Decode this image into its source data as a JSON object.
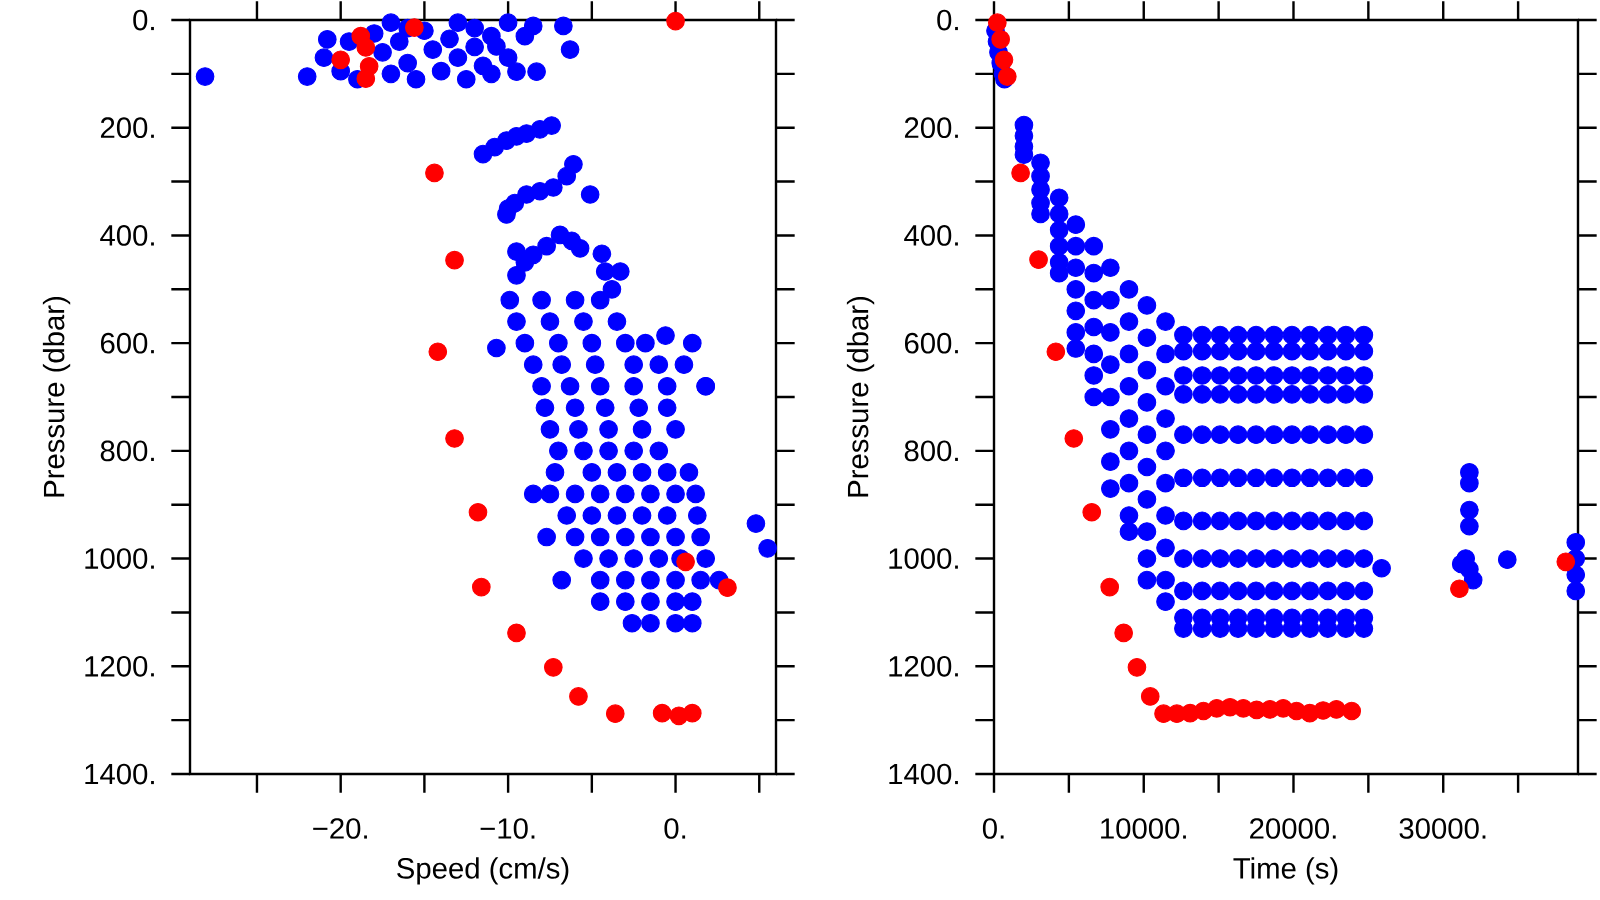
{
  "chart_data": [
    {
      "type": "scatter",
      "xlabel": "Speed (cm/s)",
      "ylabel": "Pressure (dbar)",
      "marker": "circle",
      "xlim": [
        -29,
        6
      ],
      "ylim": [
        1400,
        0
      ],
      "xticks": [
        {
          "value": -25,
          "label": null
        },
        {
          "value": -20,
          "label": "−20."
        },
        {
          "value": -15,
          "label": null
        },
        {
          "value": -10,
          "label": "−10."
        },
        {
          "value": -5,
          "label": null
        },
        {
          "value": 0,
          "label": "0."
        },
        {
          "value": 5,
          "label": null
        }
      ],
      "yticks": [
        {
          "value": 0,
          "label": "0."
        },
        {
          "value": 100,
          "label": null
        },
        {
          "value": 200,
          "label": "200."
        },
        {
          "value": 300,
          "label": null
        },
        {
          "value": 400,
          "label": "400."
        },
        {
          "value": 500,
          "label": null
        },
        {
          "value": 600,
          "label": "600."
        },
        {
          "value": 700,
          "label": null
        },
        {
          "value": 800,
          "label": "800."
        },
        {
          "value": 900,
          "label": null
        },
        {
          "value": 1000,
          "label": "1000."
        },
        {
          "value": 1100,
          "label": null
        },
        {
          "value": 1200,
          "label": "1200."
        },
        {
          "value": 1300,
          "label": null
        },
        {
          "value": 1400,
          "label": "1400."
        }
      ],
      "series": [
        {
          "color": "#0000ff",
          "x": [
            -28.1,
            -22,
            -20.8,
            -21,
            -20,
            -19.5,
            -19,
            -18,
            -17.5,
            -17,
            -16.5,
            -16,
            -15.5,
            -15,
            -14.5,
            -14,
            -13.5,
            -13,
            -12.5,
            -12,
            -12,
            -11.5,
            -11,
            -11,
            -10.7,
            -10,
            -9.5,
            -9,
            -8.5,
            -8.3,
            -6.7,
            -6.3,
            -17,
            -13,
            -10,
            -16,
            -11.5,
            -10.8,
            -10.1,
            -9.5,
            -8.9,
            -8.1,
            -7.4,
            -10.1,
            -9.6,
            -8.9,
            -8.1,
            -7.3,
            -6.5,
            -6.1,
            -5.1,
            -10,
            -9.5,
            -9,
            -8.5,
            -7.7,
            -6.9,
            -6.2,
            -5.7,
            -4.4,
            -4.2,
            -3.3,
            -3.8,
            -9.5,
            -9.9,
            -8,
            -6,
            -4.5,
            -9.5,
            -7.5,
            -5.5,
            -3.5,
            -9,
            -7,
            -5,
            -3,
            -1.8,
            1.0,
            -8.5,
            -6.8,
            -4.8,
            -2.5,
            -1,
            0.5,
            -8,
            -6.3,
            -4.5,
            -2.5,
            -0.5,
            1.8,
            -7.8,
            -6,
            -4.2,
            -2.2,
            -0.5,
            -7.5,
            -5.8,
            -4,
            -2,
            0,
            -7,
            -5.5,
            -4,
            -2.5,
            -1,
            -7.2,
            -5,
            -3.5,
            -2,
            -0.5,
            0.8,
            -8.5,
            -7.5,
            -6,
            -4.5,
            -3,
            -1.5,
            0,
            1.2,
            -6.5,
            -5,
            -3.5,
            -2,
            -0.5,
            1.3,
            -7.7,
            -6,
            -4.5,
            -3,
            -1.5,
            0,
            1.5,
            -5.5,
            -4,
            -2.5,
            -1,
            0.3,
            1.8,
            -6.8,
            -4.5,
            -3,
            -1.5,
            0,
            1.5,
            2.6,
            -4.5,
            -3,
            -1.5,
            0,
            1,
            -2.6,
            -1.5,
            0,
            1,
            -10.7,
            1.8,
            -0.6,
            4.8,
            5.5
          ],
          "values": [
            105,
            105,
            36,
            70,
            95,
            40,
            110,
            25,
            60,
            100,
            40,
            80,
            110,
            20,
            55,
            95,
            35,
            70,
            110,
            15,
            50,
            85,
            30,
            100,
            49,
            70,
            96,
            30,
            11,
            96,
            11,
            55,
            5,
            5,
            5,
            15,
            249,
            236,
            224,
            216,
            211,
            203,
            196,
            361,
            340,
            324,
            318,
            311,
            290,
            268,
            324,
            350,
            474,
            450,
            436,
            420,
            399,
            410,
            424,
            434,
            467,
            467,
            500,
            430,
            520,
            520,
            520,
            520,
            560,
            560,
            560,
            560,
            600,
            600,
            600,
            600,
            600,
            600,
            640,
            640,
            640,
            640,
            640,
            640,
            680,
            680,
            680,
            680,
            680,
            680,
            720,
            720,
            720,
            720,
            720,
            760,
            760,
            760,
            760,
            760,
            800,
            800,
            800,
            800,
            800,
            840,
            840,
            840,
            840,
            840,
            840,
            880,
            880,
            880,
            880,
            880,
            880,
            880,
            880,
            920,
            920,
            920,
            920,
            920,
            920,
            960,
            960,
            960,
            960,
            960,
            960,
            960,
            1000,
            1000,
            1000,
            1000,
            1000,
            1000,
            1040,
            1040,
            1040,
            1040,
            1040,
            1040,
            1040,
            1080,
            1080,
            1080,
            1080,
            1080,
            1120,
            1120,
            1120,
            1120,
            609,
            680,
            586,
            935,
            981
          ]
        },
        {
          "color": "#ff0000",
          "x": [
            -15.6,
            0,
            -20,
            -18.8,
            -18.5,
            -18.3,
            -18.5,
            -14.4,
            -13.2,
            -14.2,
            -13.2,
            -11.8,
            -11.6,
            -9.5,
            -7.3,
            -5.8,
            -3.6,
            0.6,
            3.1,
            -0.8,
            1.0,
            0.2
          ],
          "values": [
            14,
            2,
            74,
            30,
            51,
            86,
            109,
            284,
            446,
            616,
            777,
            914,
            1053,
            1138,
            1202,
            1256,
            1288,
            1006,
            1054,
            1287,
            1287,
            1292
          ]
        }
      ]
    },
    {
      "type": "scatter",
      "xlabel": "Time (s)",
      "ylabel": "Pressure (dbar)",
      "marker": "circle",
      "xlim": [
        0,
        39000
      ],
      "ylim": [
        1400,
        0
      ],
      "xticks": [
        {
          "value": 0,
          "label": "0."
        },
        {
          "value": 5000,
          "label": null
        },
        {
          "value": 10000,
          "label": "10000."
        },
        {
          "value": 15000,
          "label": null
        },
        {
          "value": 20000,
          "label": "20000."
        },
        {
          "value": 25000,
          "label": null
        },
        {
          "value": 30000,
          "label": "30000."
        },
        {
          "value": 35000,
          "label": null
        }
      ],
      "yticks": [
        {
          "value": 0,
          "label": "0."
        },
        {
          "value": 100,
          "label": null
        },
        {
          "value": 200,
          "label": "200."
        },
        {
          "value": 300,
          "label": null
        },
        {
          "value": 400,
          "label": "400."
        },
        {
          "value": 500,
          "label": null
        },
        {
          "value": 600,
          "label": "600."
        },
        {
          "value": 700,
          "label": null
        },
        {
          "value": 800,
          "label": "800."
        },
        {
          "value": 900,
          "label": null
        },
        {
          "value": 1000,
          "label": "1000."
        },
        {
          "value": 1100,
          "label": null
        },
        {
          "value": 1200,
          "label": "1200."
        },
        {
          "value": 1300,
          "label": null
        },
        {
          "value": 1400,
          "label": "1400."
        }
      ],
      "series": [
        {
          "color": "#0000ff",
          "x": [
            100,
            200,
            300,
            450,
            600,
            700,
            1998,
            1998,
            1998,
            1998,
            3108,
            3108,
            3108,
            3108,
            3108,
            4351,
            4351,
            4351,
            4351,
            4351,
            4351,
            5461,
            5461,
            5461,
            5461,
            5461,
            5461,
            5461,
            6660,
            6660,
            6660,
            6660,
            6660,
            6660,
            6660,
            7770,
            7770,
            7770,
            7770,
            7770,
            7770,
            7770,
            7770,
            9013,
            9013,
            9013,
            9013,
            9013,
            9013,
            9013,
            9013,
            9013,
            10212,
            10212,
            10212,
            10212,
            10212,
            10212,
            10212,
            10212,
            10212,
            10212,
            11455,
            11455,
            11455,
            11455,
            11455,
            11455,
            11455,
            11455,
            11455,
            11455,
            12650,
            12650,
            12650,
            12650,
            12650,
            12650,
            12650,
            12650,
            12650,
            12650,
            12650,
            13900,
            13900,
            13900,
            13900,
            13900,
            13900,
            13900,
            13900,
            13900,
            13900,
            13900,
            15100,
            15100,
            15100,
            15100,
            15100,
            15100,
            15100,
            15100,
            15100,
            15100,
            15100,
            16300,
            16300,
            16300,
            16300,
            16300,
            16300,
            16300,
            16300,
            16300,
            16300,
            16300,
            17500,
            17500,
            17500,
            17500,
            17500,
            17500,
            17500,
            17500,
            17500,
            17500,
            17500,
            18700,
            18700,
            18700,
            18700,
            18700,
            18700,
            18700,
            18700,
            18700,
            18700,
            18700,
            19900,
            19900,
            19900,
            19900,
            19900,
            19900,
            19900,
            19900,
            19900,
            19900,
            19900,
            21100,
            21100,
            21100,
            21100,
            21100,
            21100,
            21100,
            21100,
            21100,
            21100,
            21100,
            22300,
            22300,
            22300,
            22300,
            22300,
            22300,
            22300,
            22300,
            22300,
            22300,
            22300,
            23500,
            23500,
            23500,
            23500,
            23500,
            23500,
            23500,
            23500,
            23500,
            23500,
            23500,
            24700,
            24700,
            24700,
            24700,
            24700,
            24700,
            24700,
            24700,
            24700,
            24700,
            24700,
            25885,
            31746,
            31746,
            31746,
            31746,
            31500,
            31746,
            32000,
            31200,
            34277,
            38850,
            38850,
            38850,
            38850
          ],
          "values": [
            20,
            40,
            60,
            80,
            100,
            110,
            195,
            215,
            235,
            250,
            265,
            290,
            315,
            340,
            360,
            330,
            360,
            390,
            420,
            450,
            470,
            380,
            420,
            460,
            500,
            540,
            580,
            610,
            420,
            470,
            520,
            570,
            620,
            660,
            700,
            460,
            520,
            580,
            640,
            700,
            760,
            820,
            870,
            500,
            560,
            620,
            680,
            740,
            800,
            860,
            920,
            950,
            530,
            590,
            650,
            710,
            770,
            830,
            890,
            950,
            1000,
            1040,
            560,
            620,
            680,
            740,
            800,
            860,
            920,
            980,
            1040,
            1080,
            585,
            615,
            660,
            695,
            770,
            850,
            930,
            1000,
            1060,
            1110,
            1130,
            585,
            615,
            660,
            695,
            770,
            850,
            930,
            1000,
            1060,
            1110,
            1130,
            585,
            615,
            660,
            695,
            770,
            850,
            930,
            1000,
            1060,
            1110,
            1130,
            585,
            615,
            660,
            695,
            770,
            850,
            930,
            1000,
            1060,
            1110,
            1130,
            585,
            615,
            660,
            695,
            770,
            850,
            930,
            1000,
            1060,
            1110,
            1130,
            585,
            615,
            660,
            695,
            770,
            850,
            930,
            1000,
            1060,
            1110,
            1130,
            585,
            615,
            660,
            695,
            770,
            850,
            930,
            1000,
            1060,
            1110,
            1130,
            585,
            615,
            660,
            695,
            770,
            850,
            930,
            1000,
            1060,
            1110,
            1130,
            585,
            615,
            660,
            695,
            770,
            850,
            930,
            1000,
            1060,
            1110,
            1130,
            585,
            615,
            660,
            695,
            770,
            850,
            930,
            1000,
            1060,
            1110,
            1130,
            585,
            615,
            660,
            695,
            770,
            850,
            930,
            1000,
            1060,
            1110,
            1130,
            1018,
            840,
            860,
            910,
            940,
            1000,
            1020,
            1040,
            1010,
            1002,
            970,
            1000,
            1030,
            1060
          ]
        },
        {
          "color": "#ff0000",
          "x": [
            222,
            444,
            666,
            888,
            1776,
            2975,
            4129,
            5328,
            6527,
            7726,
            8658,
            9546,
            10434,
            11322,
            12210,
            13098,
            13986,
            14874,
            15762,
            16650,
            17538,
            18426,
            19314,
            20202,
            21090,
            21978,
            22866,
            23887,
            31080,
            38184
          ],
          "values": [
            5,
            36,
            74,
            105,
            284,
            445,
            616,
            777,
            914,
            1053,
            1138,
            1202,
            1256,
            1288,
            1288,
            1287,
            1283,
            1278,
            1276,
            1278,
            1281,
            1280,
            1278,
            1283,
            1287,
            1282,
            1280,
            1283,
            1056,
            1006
          ]
        }
      ]
    }
  ]
}
